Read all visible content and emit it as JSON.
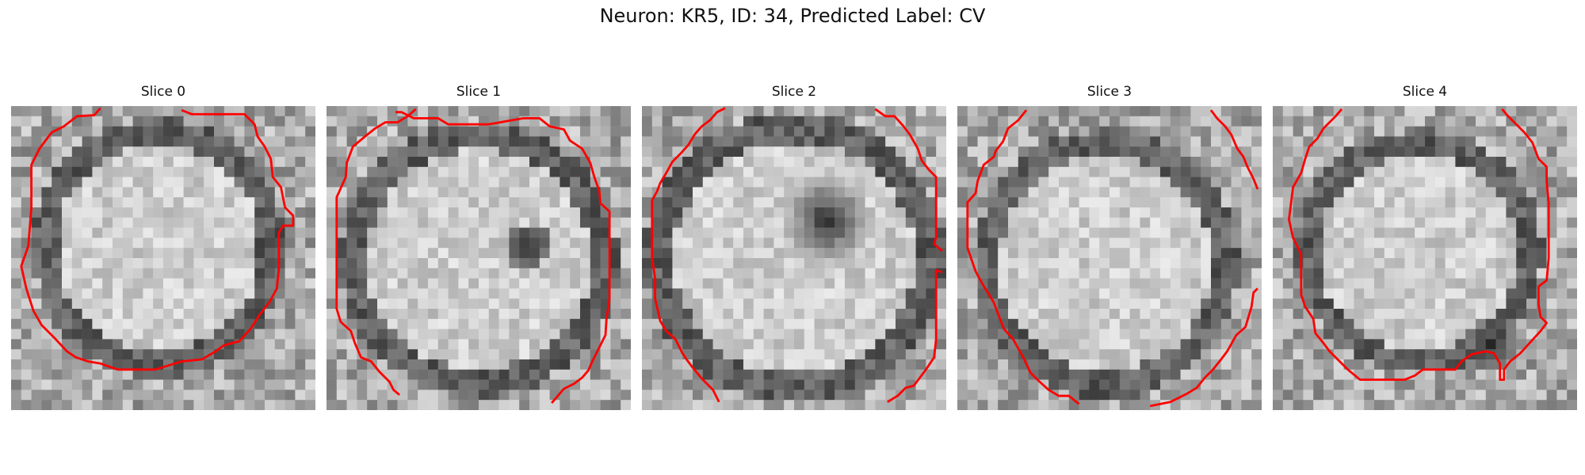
{
  "figure": {
    "title": "Neuron: KR5, ID: 34, Predicted Label: CV"
  },
  "panels": [
    {
      "title": "Slice 0"
    },
    {
      "title": "Slice 1"
    },
    {
      "title": "Slice 2"
    },
    {
      "title": "Slice 3"
    },
    {
      "title": "Slice 4"
    }
  ],
  "colors": {
    "contour": "#ff0000",
    "background": "#ffffff"
  }
}
